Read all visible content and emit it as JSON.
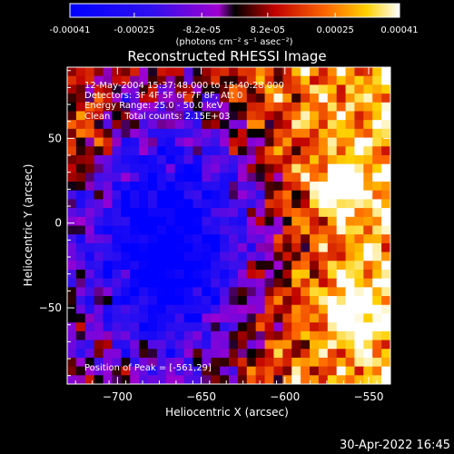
{
  "chart_data": {
    "type": "heatmap",
    "title": "Reconstructed RHESSI Image",
    "xlabel": "Heliocentric X (arcsec)",
    "ylabel": "Heliocentric Y (arcsec)",
    "xlim": [
      -730,
      -537
    ],
    "ylim": [
      -95,
      92
    ],
    "x_ticks": [
      -700,
      -650,
      -600,
      -550
    ],
    "y_ticks": [
      50,
      0,
      -50
    ],
    "colorbar": {
      "min": -0.00041,
      "max": 0.00041,
      "tick_labels": [
        "-0.00041",
        "-0.00025",
        "-8.2e-05",
        "8.2e-05",
        "0.00025",
        "0.00041"
      ],
      "tick_values": [
        -0.00041,
        -0.00025,
        -8.2e-05,
        8.2e-05,
        0.00025,
        0.00041
      ],
      "unit_label": "(photons cm⁻² s⁻¹ asec⁻²)"
    },
    "annotations": [
      "12-May-2004 15:37:48.000 to 15:40:28.000",
      "Detectors: 3F 4F 5F 6F 7F 8F, Att 0",
      "Energy Range: 25.0 - 50.0 keV",
      "Clean     Total counts: 2.15E+03"
    ],
    "peak_label": "Position of Peak = [-561,29]",
    "peak_position": [
      -561,
      29
    ],
    "grid": false
  },
  "timestamp": "30-Apr-2022 16:45"
}
